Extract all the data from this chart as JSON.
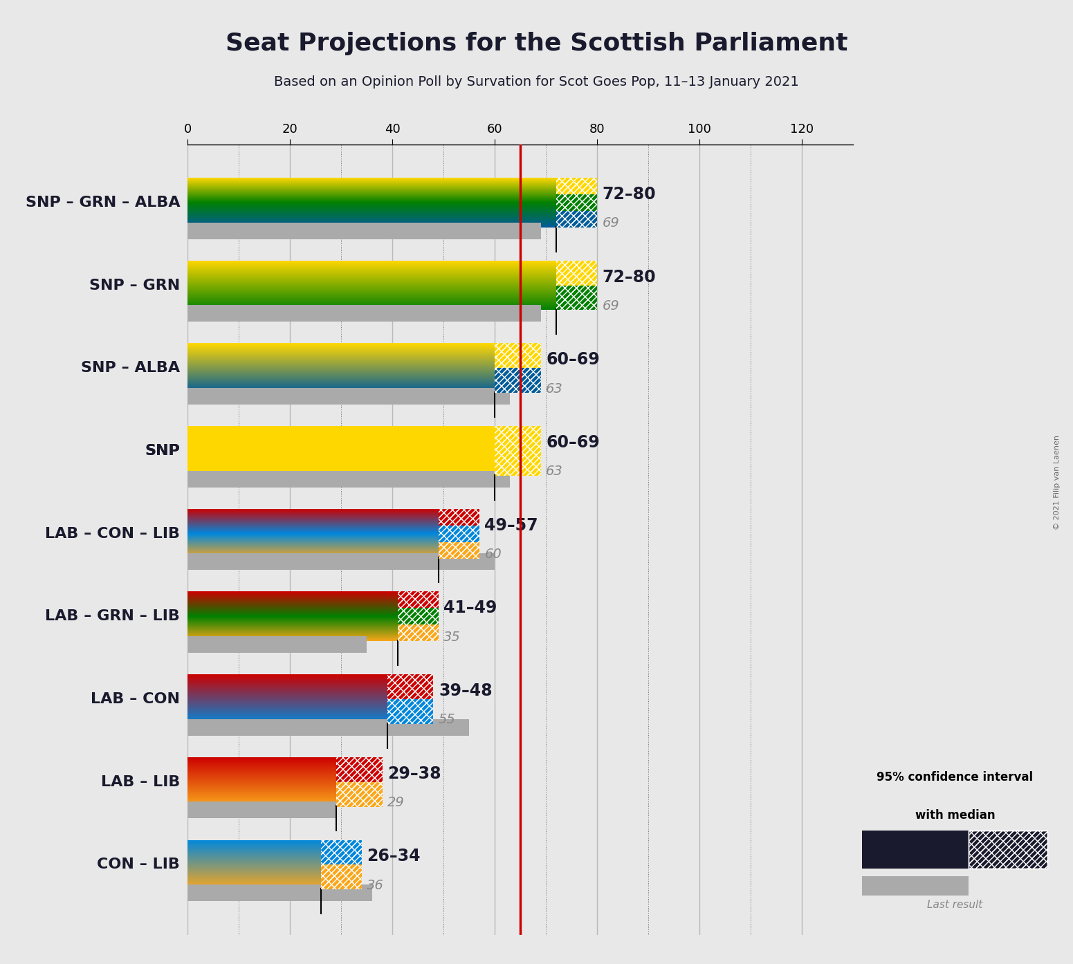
{
  "title": "Seat Projections for the Scottish Parliament",
  "subtitle": "Based on an Opinion Poll by Survation for Scot Goes Pop, 11–13 January 2021",
  "copyright": "© 2021 Filip van Laenen",
  "x_ticks": [
    0,
    20,
    40,
    60,
    80,
    100,
    120
  ],
  "x_max": 130,
  "background_color": "#e8e8e8",
  "red_line_x": 65,
  "coalitions": [
    {
      "label": "SNP – GRN – ALBA",
      "ci_low": 72,
      "ci_high": 80,
      "last_result": 69,
      "colors": [
        "#FFD700",
        "#008000",
        "#005B99"
      ],
      "underline": false
    },
    {
      "label": "SNP – GRN",
      "ci_low": 72,
      "ci_high": 80,
      "last_result": 69,
      "colors": [
        "#FFD700",
        "#008000"
      ],
      "underline": false
    },
    {
      "label": "SNP – ALBA",
      "ci_low": 60,
      "ci_high": 69,
      "last_result": 63,
      "colors": [
        "#FFD700",
        "#005B99"
      ],
      "underline": false
    },
    {
      "label": "SNP",
      "ci_low": 60,
      "ci_high": 69,
      "last_result": 63,
      "colors": [
        "#FFD700"
      ],
      "underline": true
    },
    {
      "label": "LAB – CON – LIB",
      "ci_low": 49,
      "ci_high": 57,
      "last_result": 60,
      "colors": [
        "#CC0000",
        "#0087DC",
        "#FAA61A"
      ],
      "underline": false
    },
    {
      "label": "LAB – GRN – LIB",
      "ci_low": 41,
      "ci_high": 49,
      "last_result": 35,
      "colors": [
        "#CC0000",
        "#008000",
        "#FAA61A"
      ],
      "underline": false
    },
    {
      "label": "LAB – CON",
      "ci_low": 39,
      "ci_high": 48,
      "last_result": 55,
      "colors": [
        "#CC0000",
        "#0087DC"
      ],
      "underline": false
    },
    {
      "label": "LAB – LIB",
      "ci_low": 29,
      "ci_high": 38,
      "last_result": 29,
      "colors": [
        "#CC0000",
        "#FAA61A"
      ],
      "underline": false
    },
    {
      "label": "CON – LIB",
      "ci_low": 26,
      "ci_high": 34,
      "last_result": 36,
      "colors": [
        "#0087DC",
        "#FAA61A"
      ],
      "underline": false
    }
  ]
}
